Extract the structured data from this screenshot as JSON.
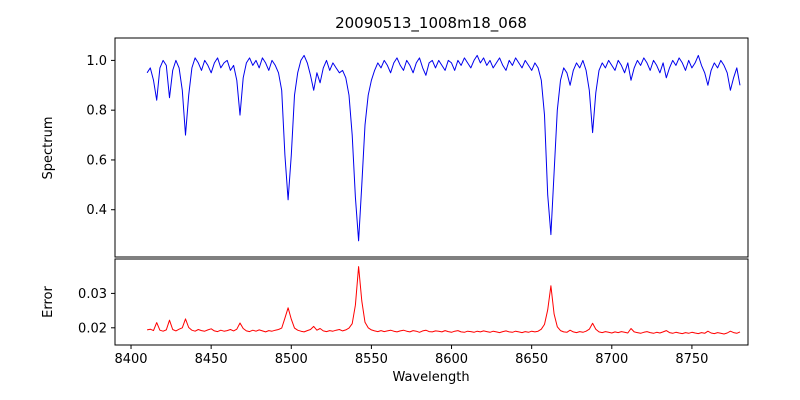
{
  "chart_data": {
    "type": "line",
    "title": "20090513_1008m18_068",
    "xlabel": "Wavelength",
    "x_start": 8410,
    "x_step": 2,
    "xlim": [
      8390,
      8785
    ],
    "xticks": [
      8400,
      8450,
      8500,
      8550,
      8600,
      8650,
      8700,
      8750
    ],
    "xtick_labels": [
      "8400",
      "8450",
      "8500",
      "8550",
      "8600",
      "8650",
      "8700",
      "8750"
    ],
    "grid": false,
    "legend": "none",
    "panels": [
      {
        "name": "spectrum",
        "ylabel": "Spectrum",
        "color": "#0000ee",
        "ylim": [
          0.21,
          1.09
        ],
        "yticks": [
          0.4,
          0.6,
          0.8,
          1.0
        ],
        "ytick_labels": [
          "0.4",
          "0.6",
          "0.8",
          "1.0"
        ],
        "values": [
          0.95,
          0.97,
          0.92,
          0.84,
          0.97,
          1.0,
          0.98,
          0.85,
          0.96,
          1.0,
          0.97,
          0.88,
          0.7,
          0.86,
          0.97,
          1.01,
          0.99,
          0.96,
          1.0,
          0.98,
          0.95,
          0.99,
          1.01,
          0.97,
          0.99,
          1.0,
          0.96,
          0.98,
          0.92,
          0.78,
          0.93,
          0.99,
          1.01,
          0.98,
          1.0,
          0.97,
          1.01,
          0.99,
          0.96,
          1.0,
          0.98,
          0.95,
          0.88,
          0.62,
          0.44,
          0.62,
          0.86,
          0.95,
          1.0,
          1.02,
          0.99,
          0.94,
          0.88,
          0.95,
          0.91,
          0.97,
          1.0,
          0.96,
          0.99,
          0.97,
          0.95,
          0.96,
          0.93,
          0.86,
          0.7,
          0.45,
          0.275,
          0.5,
          0.74,
          0.86,
          0.92,
          0.96,
          0.99,
          0.97,
          1.0,
          0.98,
          0.95,
          0.99,
          1.01,
          0.98,
          0.96,
          1.0,
          0.98,
          0.95,
          0.99,
          1.01,
          0.97,
          0.94,
          0.99,
          1.0,
          0.97,
          1.0,
          0.98,
          0.96,
          1.0,
          0.99,
          0.96,
          1.0,
          0.98,
          1.01,
          0.99,
          0.97,
          1.0,
          1.02,
          0.99,
          1.01,
          0.98,
          1.0,
          0.97,
          0.99,
          1.01,
          0.98,
          0.96,
          1.0,
          0.98,
          1.01,
          0.99,
          0.97,
          1.0,
          0.98,
          0.96,
          0.99,
          0.97,
          0.92,
          0.78,
          0.46,
          0.3,
          0.55,
          0.8,
          0.92,
          0.97,
          0.95,
          0.9,
          0.96,
          0.99,
          0.97,
          1.0,
          0.96,
          0.88,
          0.71,
          0.87,
          0.96,
          0.99,
          0.97,
          1.0,
          0.98,
          0.96,
          1.0,
          0.98,
          0.95,
          0.99,
          0.92,
          0.97,
          1.0,
          0.98,
          1.01,
          0.99,
          0.96,
          1.0,
          0.98,
          0.95,
          0.99,
          0.93,
          0.97,
          1.0,
          0.98,
          1.01,
          0.99,
          0.96,
          1.0,
          0.97,
          0.99,
          1.02,
          0.98,
          0.95,
          0.9,
          0.96,
          0.99,
          0.97,
          1.0,
          0.98,
          0.95,
          0.88,
          0.93,
          0.97,
          0.9
        ]
      },
      {
        "name": "error",
        "ylabel": "Error",
        "color": "#ff0000",
        "ylim": [
          0.015,
          0.04
        ],
        "yticks": [
          0.02,
          0.03
        ],
        "ytick_labels": [
          "0.02",
          "0.03"
        ],
        "values": [
          0.0194,
          0.0196,
          0.0192,
          0.0215,
          0.0193,
          0.019,
          0.0194,
          0.0222,
          0.0195,
          0.0191,
          0.0196,
          0.02,
          0.0226,
          0.0201,
          0.0193,
          0.019,
          0.0195,
          0.0192,
          0.019,
          0.0194,
          0.0197,
          0.0191,
          0.0189,
          0.0193,
          0.019,
          0.0192,
          0.0195,
          0.0191,
          0.0196,
          0.0214,
          0.0198,
          0.0191,
          0.0189,
          0.0193,
          0.019,
          0.0194,
          0.0191,
          0.0188,
          0.0192,
          0.019,
          0.0193,
          0.0195,
          0.0199,
          0.0228,
          0.0258,
          0.0225,
          0.0199,
          0.0193,
          0.019,
          0.0188,
          0.0192,
          0.0195,
          0.0204,
          0.0193,
          0.0198,
          0.0191,
          0.0189,
          0.0192,
          0.019,
          0.0193,
          0.0195,
          0.0191,
          0.0194,
          0.0199,
          0.0212,
          0.0266,
          0.0378,
          0.0278,
          0.0216,
          0.02,
          0.0194,
          0.0191,
          0.0189,
          0.0192,
          0.0189,
          0.0191,
          0.0193,
          0.019,
          0.0188,
          0.0191,
          0.0193,
          0.019,
          0.0188,
          0.0192,
          0.019,
          0.0187,
          0.0191,
          0.0193,
          0.0189,
          0.0188,
          0.0191,
          0.019,
          0.0188,
          0.0192,
          0.0189,
          0.0187,
          0.019,
          0.0192,
          0.0188,
          0.0187,
          0.019,
          0.0189,
          0.0187,
          0.019,
          0.0188,
          0.0191,
          0.0189,
          0.0187,
          0.019,
          0.0188,
          0.0186,
          0.0189,
          0.0191,
          0.0188,
          0.0187,
          0.019,
          0.0188,
          0.0186,
          0.0189,
          0.0187,
          0.019,
          0.0188,
          0.019,
          0.0196,
          0.021,
          0.0252,
          0.0322,
          0.024,
          0.0203,
          0.0192,
          0.0188,
          0.0187,
          0.0193,
          0.0188,
          0.0186,
          0.0189,
          0.0187,
          0.019,
          0.0196,
          0.0213,
          0.0196,
          0.0188,
          0.0186,
          0.0189,
          0.0187,
          0.0185,
          0.0188,
          0.0186,
          0.0189,
          0.0187,
          0.0185,
          0.0198,
          0.0188,
          0.0186,
          0.0184,
          0.0187,
          0.0189,
          0.0186,
          0.0184,
          0.0187,
          0.0185,
          0.0188,
          0.0192,
          0.0186,
          0.0184,
          0.0187,
          0.0185,
          0.0183,
          0.0186,
          0.0184,
          0.0187,
          0.0185,
          0.0183,
          0.0186,
          0.0184,
          0.019,
          0.0185,
          0.0183,
          0.0186,
          0.0184,
          0.0182,
          0.0185,
          0.019,
          0.0186,
          0.0184,
          0.0188
        ]
      }
    ]
  }
}
